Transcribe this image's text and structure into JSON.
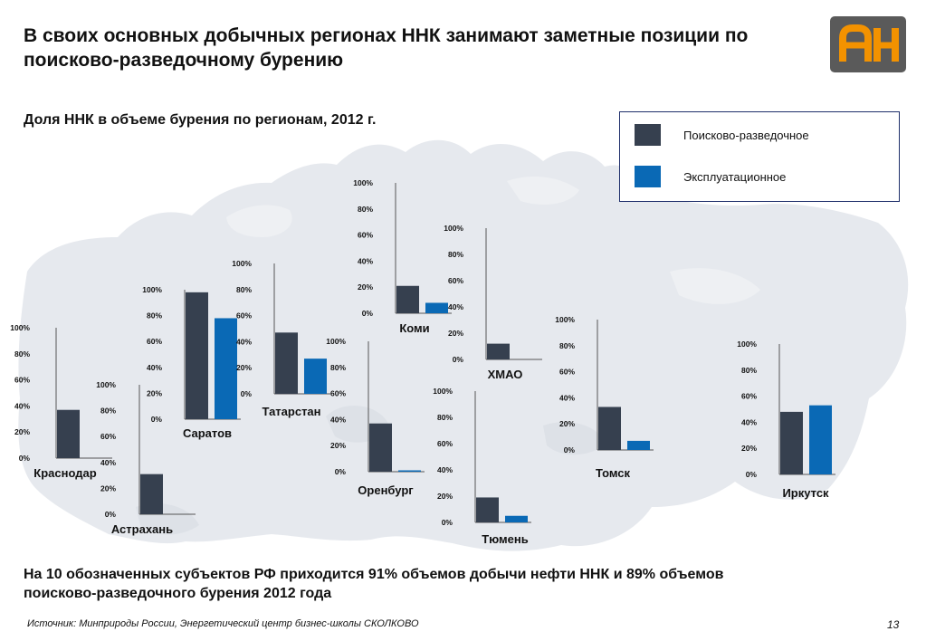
{
  "title": "В своих основных добычных регионах ННК занимают заметные позиции по поисково-разведочному бурению",
  "subtitle": "Доля ННК в объеме бурения по регионам, 2012 г.",
  "logo_icon": "ah-logo-icon",
  "colors": {
    "exploration": "#36404f",
    "production": "#0a69b5",
    "map": "#e5e8ec",
    "logo_bg": "#5a5a5a",
    "logo_fg": "#f39200"
  },
  "legend": [
    {
      "label": "Поисково-разведочное",
      "color": "#36404f"
    },
    {
      "label": "Эксплуатационное",
      "color": "#0a69b5"
    }
  ],
  "chart_data": {
    "type": "bar",
    "axis_ticks": [
      "0%",
      "20%",
      "40%",
      "60%",
      "80%",
      "100%"
    ],
    "ylim": [
      0,
      100
    ],
    "series_names": [
      "Поисково-разведочное",
      "Эксплуатационное"
    ],
    "regions": [
      {
        "name": "Краснодар",
        "exploration": 37,
        "production": 0
      },
      {
        "name": "Астрахань",
        "exploration": 31,
        "production": 0
      },
      {
        "name": "Саратов",
        "exploration": 98,
        "production": 78
      },
      {
        "name": "Татарстан",
        "exploration": 47,
        "production": 27
      },
      {
        "name": "Коми",
        "exploration": 21,
        "production": 8
      },
      {
        "name": "Оренбург",
        "exploration": 37,
        "production": 1
      },
      {
        "name": "ХМАО",
        "exploration": 12,
        "production": 0
      },
      {
        "name": "Тюмень",
        "exploration": 19,
        "production": 5
      },
      {
        "name": "Томск",
        "exploration": 33,
        "production": 7
      },
      {
        "name": "Иркутск",
        "exploration": 48,
        "production": 53
      }
    ]
  },
  "summary": "На 10 обозначенных субъектов РФ приходится 91% объемов добычи нефти ННК и 89% объемов поисково-разведочного бурения 2012 года",
  "source": "Источник: Минприроды России, Энергетический центр бизнес-школы СКОЛКОВО",
  "page_number": "13"
}
